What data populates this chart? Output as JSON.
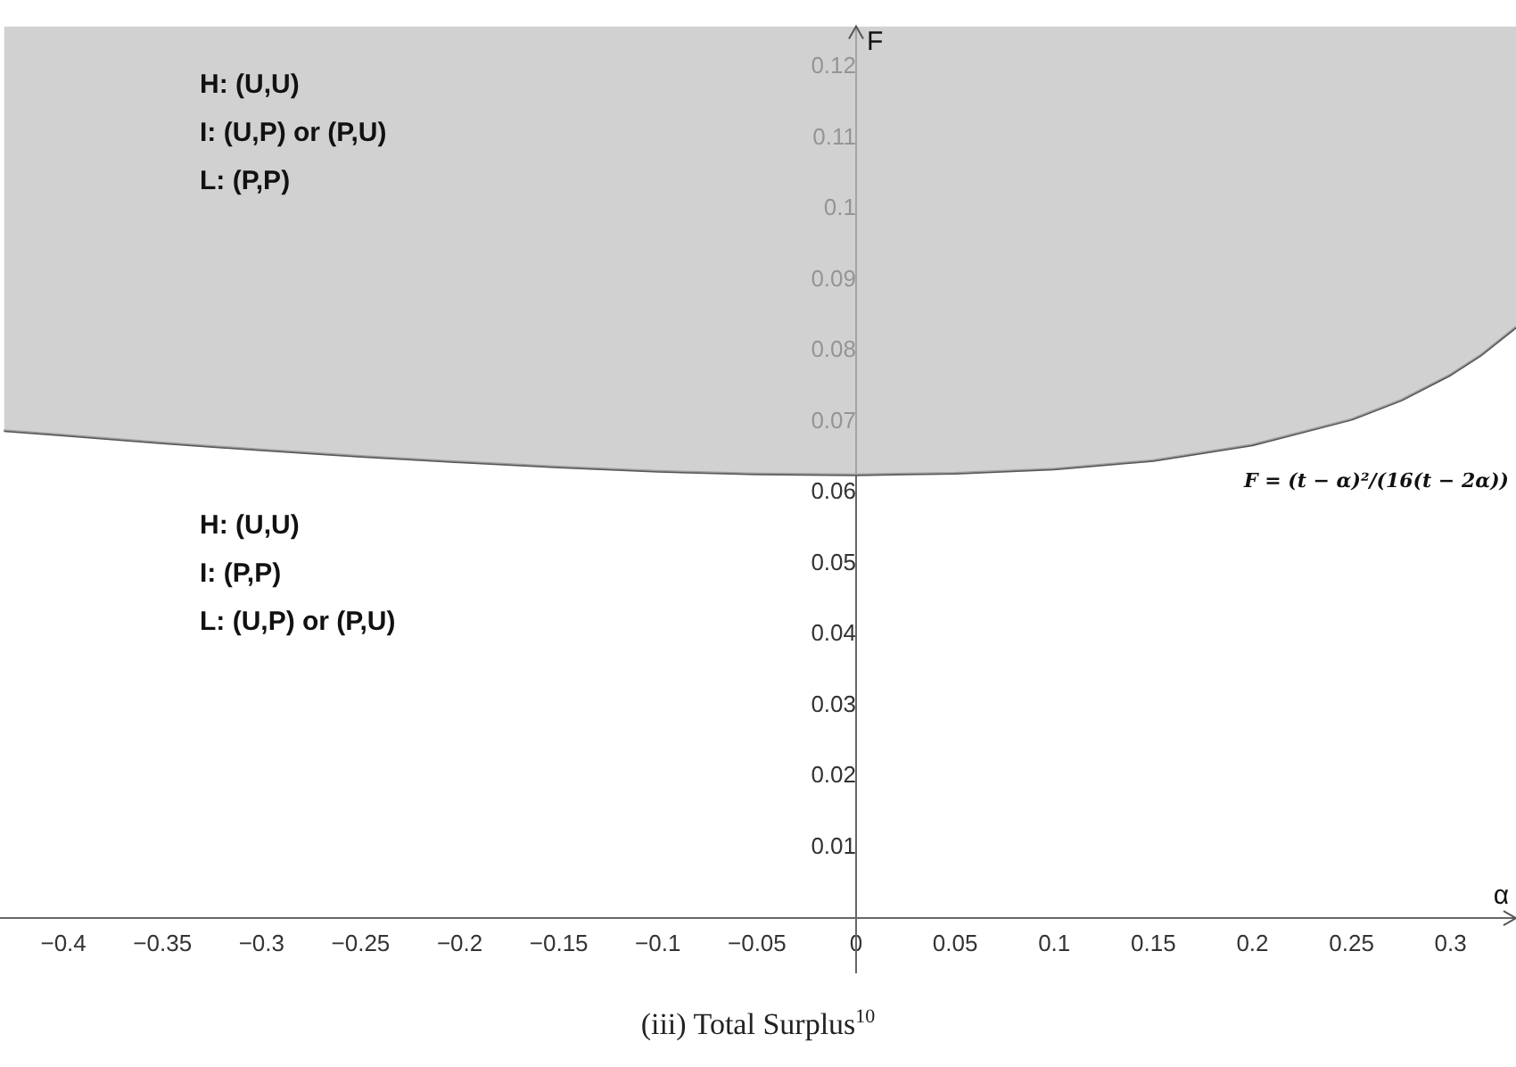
{
  "chart_data": {
    "type": "line",
    "title": "(iii) Total Surplus$^{10}$",
    "xlabel": "α",
    "ylabel": "F",
    "x": [
      -0.43,
      -0.4,
      -0.35,
      -0.3,
      -0.25,
      -0.2,
      -0.15,
      -0.1,
      -0.05,
      0,
      0.05,
      0.1,
      0.15,
      0.2,
      0.25,
      0.275,
      0.3,
      0.315,
      0.333
    ],
    "series": [
      {
        "name": "F = (t − α)²/(16(t − 2α))",
        "color": "#555555",
        "values": [
          0.0687,
          0.0681,
          0.067,
          0.066,
          0.0651,
          0.0643,
          0.0636,
          0.063,
          0.0626,
          0.0625,
          0.0627,
          0.0633,
          0.0645,
          0.0667,
          0.0703,
          0.073,
          0.0766,
          0.0793,
          0.0833
        ],
        "lower": [
          0.0687,
          0.0681,
          0.067,
          0.066,
          0.0651,
          0.0643,
          0.0636,
          0.063,
          0.0626,
          0.0625,
          0.0627,
          0.0633,
          0.0645,
          0.0667,
          0.0703,
          0.073,
          0.0766,
          0.0793,
          0.0833
        ],
        "upper": [
          0.1257,
          0.1257,
          0.1257,
          0.1257,
          0.1257,
          0.1257,
          0.1257,
          0.1257,
          0.1257,
          0.1257,
          0.1257,
          0.1257,
          0.1257,
          0.1257,
          0.1257,
          0.1257,
          0.1257,
          0.1257,
          0.1257
        ]
      }
    ],
    "annotations": [
      "H: (U,U)",
      "I: (U,P) or (P,U)",
      "L: (P,P)",
      "H: (U,U)",
      "I: (P,P)",
      "L: (U,P) or (P,U)"
    ],
    "xlim": [
      -0.432,
      0.333
    ],
    "ylim": [
      -0.0077,
      0.1257
    ],
    "xticks": [
      -0.4,
      -0.35,
      -0.3,
      -0.25,
      -0.2,
      -0.15,
      -0.1,
      -0.05,
      0,
      0.05,
      0.1,
      0.15,
      0.2,
      0.25,
      0.3
    ],
    "yticks": [
      0.01,
      0.02,
      0.03,
      0.04,
      0.05,
      0.06,
      0.07,
      0.08,
      0.09,
      0.1,
      0.11,
      0.12
    ],
    "grid": false,
    "legend": false,
    "marker": "none",
    "line_style": "solid"
  }
}
